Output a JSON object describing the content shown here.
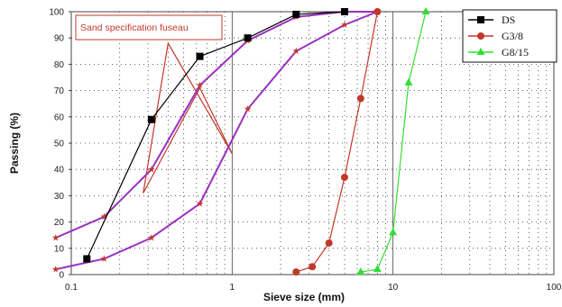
{
  "chart_data": {
    "type": "line",
    "xscale": "log",
    "xlim": [
      0.1,
      100
    ],
    "ylim": [
      0,
      100
    ],
    "xlabel": "Sieve size (mm)",
    "ylabel": "Passing (%)",
    "x_ticks": [
      0.1,
      1,
      10,
      100
    ],
    "x_tick_labels": [
      "0.1",
      "1",
      "10",
      "100"
    ],
    "y_ticks": [
      0,
      10,
      20,
      30,
      40,
      50,
      60,
      70,
      80,
      90,
      100
    ],
    "y_tick_labels": [
      "0",
      "10",
      "20",
      "30",
      "40",
      "50",
      "60",
      "70",
      "80",
      "90",
      "100"
    ],
    "grid": "dotted",
    "legend_position": "top-right",
    "annotation": "Sand specification fuseau",
    "series": [
      {
        "name": "DS",
        "color": "#000000",
        "marker": "square",
        "x": [
          0.125,
          0.315,
          0.63,
          1.25,
          2.5,
          5
        ],
        "y": [
          6,
          59,
          83,
          90,
          99,
          100
        ]
      },
      {
        "name": "G3/8",
        "color": "#c0392b",
        "marker": "circle",
        "x": [
          2.5,
          3.15,
          4,
          5,
          6.3,
          8
        ],
        "y": [
          1,
          3,
          12,
          37,
          67,
          100
        ]
      },
      {
        "name": "G8/15",
        "color": "#33dd33",
        "marker": "triangle",
        "x": [
          6.3,
          8,
          10,
          12.5,
          16
        ],
        "y": [
          1,
          2,
          16,
          73,
          100
        ]
      }
    ],
    "fuseau_bounds": [
      {
        "color": "#9b30c0",
        "marker": "star",
        "x": [
          0.08,
          0.16,
          0.315,
          0.63,
          1.25,
          2.5,
          5,
          8
        ],
        "y": [
          14,
          22,
          40,
          72,
          89,
          98,
          100,
          100
        ]
      },
      {
        "color": "#9b30c0",
        "marker": "star",
        "x": [
          0.08,
          0.16,
          0.315,
          0.63,
          1.25,
          2.5,
          5,
          8
        ],
        "y": [
          2,
          6,
          14,
          27,
          63,
          85,
          95,
          100
        ]
      }
    ],
    "fuseau_zigzag": {
      "color": "#c0392b",
      "x": [
        0.28,
        0.4,
        1.0,
        0.63,
        0.28
      ],
      "y": [
        31,
        88,
        46,
        71,
        31
      ]
    }
  }
}
